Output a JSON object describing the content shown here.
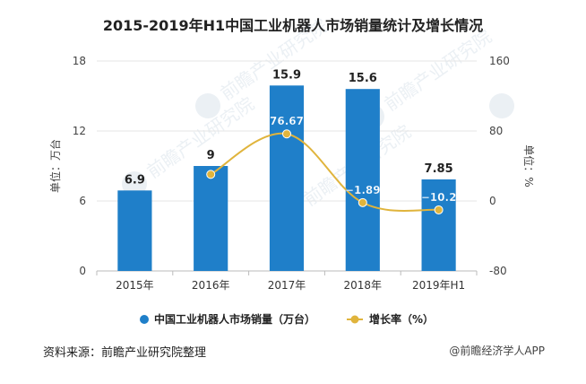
{
  "chart_data": {
    "type": "bar",
    "title": "2015-2019年H1中国工业机器人市场销量统计及增长情况",
    "categories": [
      "2015年",
      "2016年",
      "2017年",
      "2018年",
      "2019年H1"
    ],
    "series": [
      {
        "name": "中国工业机器人市场销量（万台）",
        "type": "bar",
        "axis": "left",
        "color": "#1f7fc9",
        "values": [
          6.9,
          9,
          15.9,
          15.6,
          7.85
        ],
        "labels": [
          "6.9",
          "9",
          "15.9",
          "15.6",
          "7.85"
        ]
      },
      {
        "name": "增长率（%）",
        "type": "line",
        "axis": "right",
        "color": "#e0b43c",
        "values": [
          null,
          30.4,
          76.67,
          -1.89,
          -10.2
        ],
        "labels": [
          "",
          "",
          "76.67",
          "−1.89",
          "−10.2"
        ]
      }
    ],
    "ylabel_left": "单位：万台",
    "ylabel_right": "单位：%",
    "ylim_left": [
      0,
      18
    ],
    "ylim_right": [
      -80,
      160
    ],
    "yticks_left": [
      "0",
      "6",
      "12",
      "18"
    ],
    "yticks_right": [
      "-80",
      "0",
      "80",
      "160"
    ],
    "grid": true,
    "legend_position": "bottom"
  },
  "footer": {
    "source": "资料来源：前瞻产业研究院整理",
    "brand": "@前瞻经济学人APP"
  },
  "watermark": {
    "text": "前瞻产业研究院"
  }
}
